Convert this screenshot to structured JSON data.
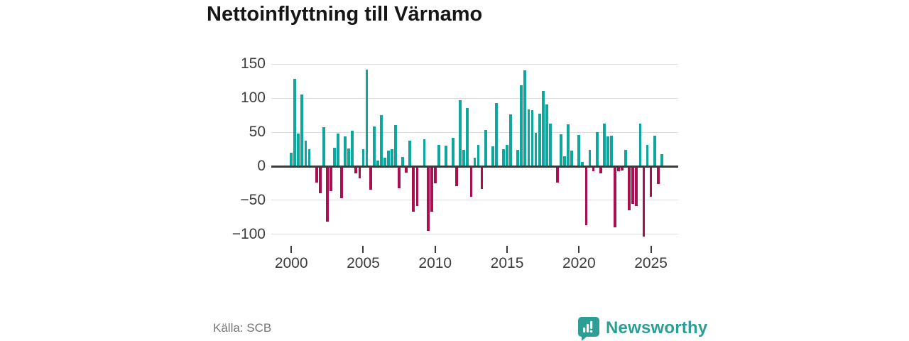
{
  "title": "Nettoinflyttning till Värnamo",
  "footer": {
    "source_label": "Källa: SCB",
    "brand": "Newsworthy"
  },
  "chart_data": {
    "type": "bar",
    "title": "Nettoinflyttning till Värnamo",
    "source": "Källa: SCB",
    "frequency": "quarterly",
    "x_start": "2000-Q1",
    "x_end": "2025-Q4",
    "values": [
      20,
      128,
      48,
      105,
      38,
      25,
      0,
      -22,
      -38,
      57,
      -79,
      -34,
      27,
      48,
      -45,
      44,
      26,
      52,
      -8,
      -16,
      25,
      142,
      -32,
      58,
      8,
      75,
      13,
      23,
      25,
      61,
      -30,
      14,
      -7,
      38,
      -65,
      -56,
      0,
      40,
      -93,
      -65,
      -23,
      31,
      0,
      30,
      0,
      42,
      -27,
      97,
      24,
      86,
      -43,
      12,
      31,
      -31,
      53,
      0,
      29,
      93,
      0,
      25,
      31,
      76,
      0,
      24,
      119,
      141,
      83,
      82,
      49,
      77,
      111,
      91,
      63,
      0,
      -22,
      47,
      15,
      62,
      23,
      0,
      46,
      6,
      -84,
      24,
      -5,
      50,
      -8,
      63,
      44,
      45,
      -88,
      -5,
      -4,
      24,
      -63,
      -53,
      -56,
      63,
      -101,
      31,
      -43,
      45,
      -24,
      18
    ],
    "y_ticks": [
      150,
      100,
      50,
      0,
      -50,
      -100
    ],
    "x_tick_labels": [
      "2000",
      "2005",
      "2010",
      "2015",
      "2020",
      "2025"
    ],
    "ylim": [
      -110,
      155
    ],
    "grid": true,
    "legend": "none",
    "colors": {
      "positive": "#0ea69d",
      "negative": "#a8104f",
      "zero_line": "#3b3b3b",
      "gridline": "#dcdcdc",
      "brand_teal": "#2d9d96"
    }
  }
}
